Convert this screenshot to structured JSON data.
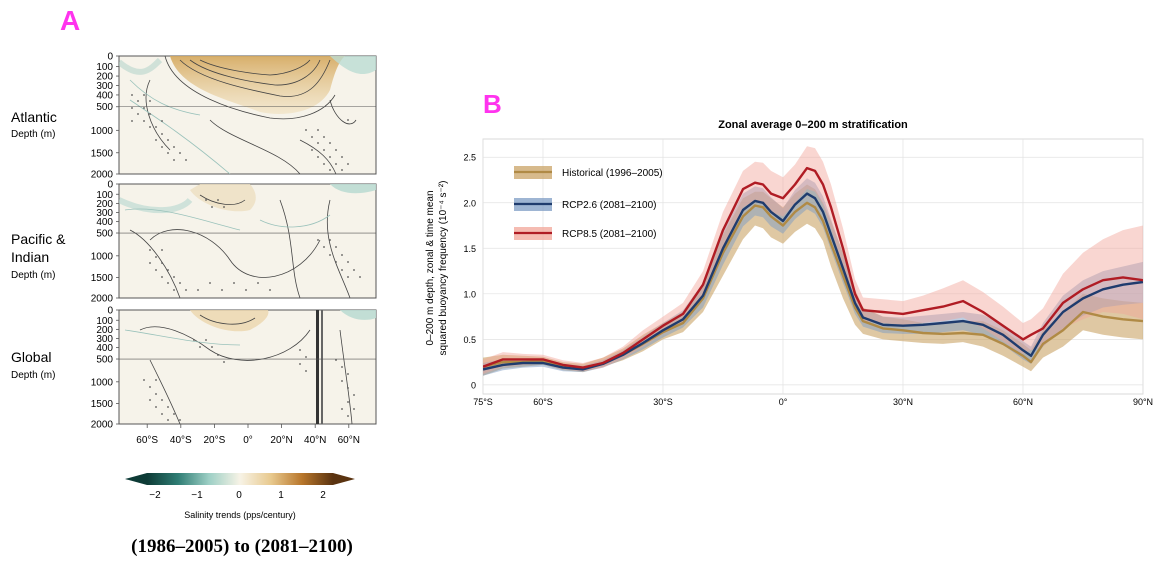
{
  "panel_a": {
    "letter": "A",
    "rows": [
      {
        "name": "Atlantic",
        "sub": "Depth (m)"
      },
      {
        "name": "Pacific &",
        "name2": "Indian",
        "sub": "Depth (m)"
      },
      {
        "name": "Global",
        "sub": "Depth (m)"
      }
    ],
    "depth_ticks": [
      "0",
      "100",
      "200",
      "300",
      "400",
      "500",
      "1000",
      "1500",
      "2000"
    ],
    "lat_ticks": [
      "60°S",
      "40°S",
      "20°S",
      "0°",
      "20°N",
      "40°N",
      "60°N"
    ],
    "colorbar": {
      "ticks": [
        "−2",
        "−1",
        "0",
        "1",
        "2"
      ],
      "label": "Salinity trends (pps/century)",
      "colors": [
        "#0d3b36",
        "#2f7d74",
        "#9dcfc5",
        "#f7f3e6",
        "#e8c98e",
        "#b8762b",
        "#5a3310"
      ]
    },
    "caption": "(1986–2005) to (2081–2100)"
  },
  "chart_data": [
    {
      "type": "line",
      "panel": "B",
      "title": "Zonal average 0–200 m stratification",
      "ylabel_lines": [
        "0–200 m depth, zonal & time mean",
        "squared buoyancy frequency (10⁻⁴ s⁻²)"
      ],
      "xlabel": "",
      "xlim": [
        -75,
        90
      ],
      "ylim": [
        -0.1,
        2.7
      ],
      "x_ticks": [
        -75,
        -60,
        -30,
        0,
        30,
        60,
        90
      ],
      "x_tick_labels": [
        "75°S",
        "60°S",
        "30°S",
        "0°",
        "30°N",
        "60°N",
        "90°N"
      ],
      "y_ticks": [
        0,
        0.5,
        1.0,
        1.5,
        2.0,
        2.5
      ],
      "y_tick_labels": [
        "0",
        "0.5",
        "1.0",
        "1.5",
        "2.0",
        "2.5"
      ],
      "grid": true,
      "legend_position": "top-left",
      "x": [
        -75,
        -70,
        -65,
        -60,
        -55,
        -50,
        -45,
        -40,
        -35,
        -30,
        -25,
        -20,
        -15,
        -10,
        -7,
        -5,
        -3,
        0,
        3,
        6,
        8,
        10,
        12,
        15,
        18,
        20,
        25,
        30,
        35,
        40,
        45,
        50,
        55,
        60,
        62,
        65,
        70,
        75,
        80,
        85,
        90
      ],
      "series": [
        {
          "name": "Historical (1996–2005)",
          "color": "#b08a45",
          "band_color": "#c9a366",
          "values": [
            0.2,
            0.25,
            0.25,
            0.26,
            0.2,
            0.18,
            0.24,
            0.33,
            0.45,
            0.58,
            0.68,
            0.95,
            1.45,
            1.85,
            1.97,
            1.95,
            1.85,
            1.75,
            1.9,
            2.0,
            1.95,
            1.8,
            1.55,
            1.2,
            0.85,
            0.7,
            0.62,
            0.6,
            0.57,
            0.56,
            0.57,
            0.55,
            0.45,
            0.32,
            0.25,
            0.45,
            0.6,
            0.8,
            0.75,
            0.72,
            0.7
          ],
          "lower": [
            0.1,
            0.18,
            0.2,
            0.22,
            0.16,
            0.14,
            0.2,
            0.27,
            0.37,
            0.5,
            0.58,
            0.8,
            1.2,
            1.6,
            1.75,
            1.72,
            1.62,
            1.55,
            1.68,
            1.77,
            1.72,
            1.58,
            1.3,
            0.95,
            0.66,
            0.56,
            0.5,
            0.48,
            0.46,
            0.45,
            0.47,
            0.42,
            0.32,
            0.2,
            0.15,
            0.3,
            0.42,
            0.6,
            0.55,
            0.52,
            0.5
          ],
          "upper": [
            0.3,
            0.33,
            0.32,
            0.31,
            0.25,
            0.23,
            0.3,
            0.4,
            0.55,
            0.68,
            0.8,
            1.1,
            1.65,
            2.05,
            2.12,
            2.12,
            2.05,
            1.95,
            2.1,
            2.2,
            2.15,
            2.0,
            1.8,
            1.45,
            1.05,
            0.85,
            0.75,
            0.72,
            0.68,
            0.68,
            0.7,
            0.7,
            0.6,
            0.45,
            0.38,
            0.6,
            0.8,
            1.0,
            0.95,
            0.92,
            0.9
          ]
        },
        {
          "name": "RCP2.6 (2081–2100)",
          "color": "#1f3c6e",
          "band_color": "#7d9cc4",
          "values": [
            0.17,
            0.22,
            0.24,
            0.24,
            0.19,
            0.17,
            0.23,
            0.33,
            0.46,
            0.6,
            0.72,
            0.98,
            1.5,
            1.92,
            2.02,
            2.0,
            1.9,
            1.8,
            1.98,
            2.1,
            2.05,
            1.9,
            1.65,
            1.28,
            0.9,
            0.74,
            0.66,
            0.65,
            0.66,
            0.68,
            0.7,
            0.66,
            0.55,
            0.38,
            0.32,
            0.55,
            0.8,
            0.95,
            1.05,
            1.1,
            1.13
          ],
          "lower": [
            0.1,
            0.16,
            0.19,
            0.2,
            0.15,
            0.14,
            0.19,
            0.28,
            0.39,
            0.52,
            0.63,
            0.85,
            1.32,
            1.74,
            1.86,
            1.84,
            1.74,
            1.66,
            1.82,
            1.93,
            1.88,
            1.73,
            1.48,
            1.12,
            0.78,
            0.64,
            0.57,
            0.56,
            0.56,
            0.58,
            0.6,
            0.55,
            0.44,
            0.28,
            0.23,
            0.42,
            0.62,
            0.76,
            0.85,
            0.88,
            0.9
          ],
          "upper": [
            0.24,
            0.28,
            0.29,
            0.28,
            0.23,
            0.21,
            0.27,
            0.38,
            0.53,
            0.68,
            0.82,
            1.12,
            1.68,
            2.1,
            2.18,
            2.16,
            2.06,
            1.94,
            2.14,
            2.27,
            2.22,
            2.07,
            1.82,
            1.44,
            1.02,
            0.84,
            0.75,
            0.74,
            0.76,
            0.78,
            0.8,
            0.77,
            0.66,
            0.48,
            0.42,
            0.68,
            0.98,
            1.15,
            1.25,
            1.3,
            1.35
          ]
        },
        {
          "name": "RCP8.5 (2081–2100)",
          "color": "#b01c24",
          "band_color": "#f2a598",
          "values": [
            0.2,
            0.28,
            0.28,
            0.28,
            0.22,
            0.19,
            0.24,
            0.35,
            0.5,
            0.65,
            0.78,
            1.1,
            1.7,
            2.15,
            2.22,
            2.2,
            2.1,
            2.05,
            2.2,
            2.38,
            2.35,
            2.2,
            1.95,
            1.5,
            1.0,
            0.82,
            0.8,
            0.78,
            0.82,
            0.86,
            0.92,
            0.8,
            0.65,
            0.5,
            0.55,
            0.62,
            0.9,
            1.05,
            1.15,
            1.18,
            1.15
          ],
          "lower": [
            0.12,
            0.2,
            0.22,
            0.23,
            0.17,
            0.15,
            0.19,
            0.29,
            0.42,
            0.56,
            0.67,
            0.95,
            1.5,
            1.95,
            2.02,
            2.0,
            1.9,
            1.85,
            2.0,
            2.15,
            2.12,
            1.98,
            1.72,
            1.3,
            0.86,
            0.7,
            0.68,
            0.66,
            0.68,
            0.7,
            0.74,
            0.62,
            0.48,
            0.34,
            0.38,
            0.42,
            0.62,
            0.72,
            0.8,
            0.78,
            0.72
          ],
          "upper": [
            0.28,
            0.36,
            0.34,
            0.33,
            0.27,
            0.24,
            0.3,
            0.42,
            0.6,
            0.75,
            0.9,
            1.25,
            1.9,
            2.35,
            2.45,
            2.44,
            2.35,
            2.28,
            2.42,
            2.62,
            2.6,
            2.45,
            2.2,
            1.72,
            1.16,
            0.96,
            0.94,
            0.92,
            0.98,
            1.06,
            1.15,
            1.02,
            0.86,
            0.68,
            0.72,
            0.84,
            1.22,
            1.45,
            1.6,
            1.7,
            1.75
          ]
        }
      ]
    }
  ],
  "panel_b": {
    "letter": "B"
  }
}
